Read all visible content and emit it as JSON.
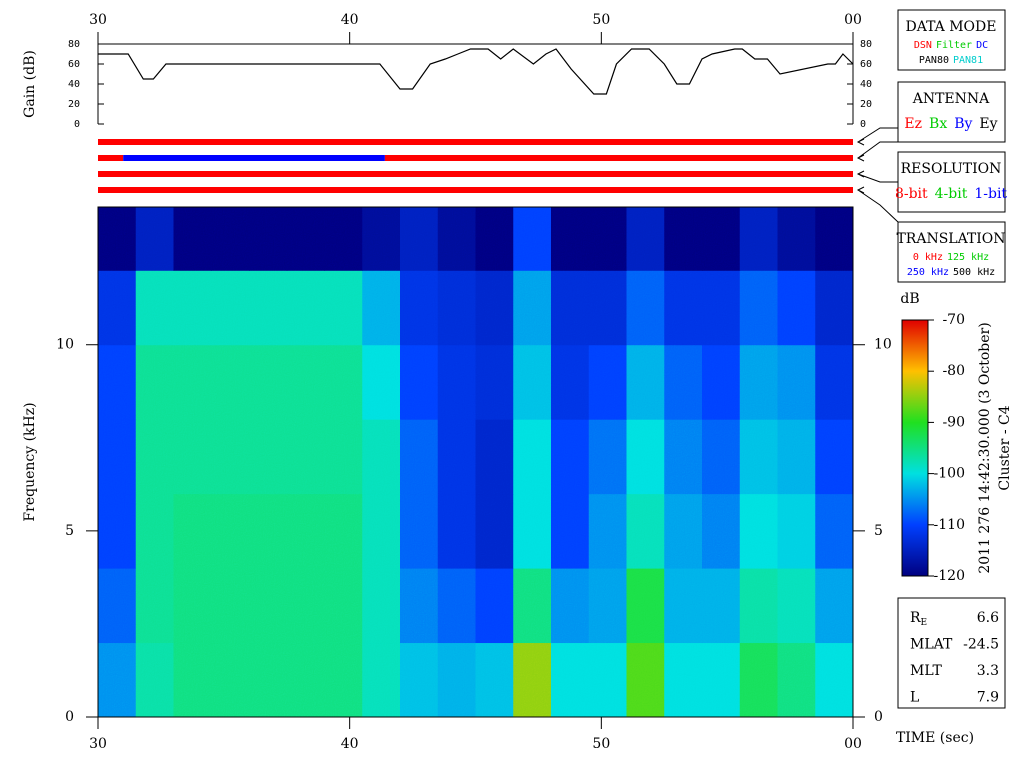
{
  "chart_data": [
    {
      "type": "line",
      "ylabel": "Gain (dB)",
      "color": "#000000",
      "x": [
        30,
        31.2,
        31.8,
        32.2,
        32.7,
        41.2,
        42.0,
        42.5,
        43.2,
        43.8,
        44.3,
        44.8,
        45.5,
        46.0,
        46.5,
        47.3,
        47.8,
        48.2,
        48.8,
        49.7,
        50.2,
        50.6,
        51.2,
        51.9,
        52.5,
        53.0,
        53.5,
        54.0,
        54.4,
        55.3,
        55.6,
        56.1,
        56.6,
        57.1,
        59.0,
        59.3,
        59.6,
        60
      ],
      "values": [
        70,
        70,
        45,
        45,
        60,
        60,
        35,
        35,
        60,
        65,
        70,
        75,
        75,
        65,
        75,
        60,
        70,
        75,
        55,
        30,
        30,
        60,
        75,
        75,
        60,
        40,
        40,
        65,
        70,
        75,
        75,
        65,
        65,
        50,
        60,
        60,
        70,
        60
      ],
      "xlim": [
        30,
        60
      ],
      "xticks": [
        30,
        40,
        50,
        {
          "value": 60,
          "label": "00"
        }
      ],
      "ylim": [
        0,
        80
      ],
      "yticks": [
        0,
        20,
        40,
        60,
        80
      ]
    },
    {
      "type": "status",
      "xlim": [
        30,
        60
      ],
      "rows": [
        [
          {
            "start": 30,
            "end": 60,
            "color": "#ff0000"
          }
        ],
        [
          {
            "start": 30,
            "end": 31,
            "color": "#ff0000"
          },
          {
            "start": 31,
            "end": 41.4,
            "color": "#0000ff"
          },
          {
            "start": 41.4,
            "end": 60,
            "color": "#ff0000"
          }
        ],
        [
          {
            "start": 30,
            "end": 60,
            "color": "#ff0000"
          }
        ],
        [
          {
            "start": 30,
            "end": 60,
            "color": "#ff0000"
          }
        ]
      ]
    },
    {
      "type": "heatmap",
      "xlabel": "TIME (sec)",
      "ylabel": "Frequency (kHz)",
      "colorbar_label": "dB",
      "x_edges": [
        30,
        31.5,
        33,
        34.5,
        36,
        37.5,
        39,
        40.5,
        42,
        43.5,
        45,
        46.5,
        48,
        49.5,
        51,
        52.5,
        54,
        55.5,
        57,
        58.5,
        60
      ],
      "y_edges": [
        0,
        2,
        4,
        6,
        8,
        10,
        12,
        13.7
      ],
      "z": [
        [
          -105,
          -97,
          -95,
          -95,
          -95,
          -95,
          -95,
          -98,
          -102,
          -103,
          -102,
          -85,
          -100,
          -100,
          -88,
          -100,
          -100,
          -93,
          -95,
          -100
        ],
        [
          -108,
          -96,
          -95,
          -95,
          -95,
          -95,
          -95,
          -98,
          -106,
          -108,
          -110,
          -95,
          -105,
          -104,
          -92,
          -103,
          -103,
          -97,
          -98,
          -104
        ],
        [
          -110,
          -96,
          -95,
          -95,
          -95,
          -95,
          -95,
          -98,
          -108,
          -112,
          -114,
          -100,
          -110,
          -105,
          -98,
          -104,
          -106,
          -100,
          -101,
          -108
        ],
        [
          -110,
          -96,
          -96,
          -96,
          -96,
          -96,
          -96,
          -98,
          -108,
          -112,
          -114,
          -100,
          -110,
          -107,
          -100,
          -106,
          -108,
          -102,
          -103,
          -110
        ],
        [
          -110,
          -96,
          -96,
          -96,
          -96,
          -96,
          -96,
          -100,
          -110,
          -112,
          -113,
          -102,
          -112,
          -110,
          -103,
          -108,
          -110,
          -104,
          -105,
          -112
        ],
        [
          -112,
          -98,
          -98,
          -98,
          -98,
          -98,
          -98,
          -103,
          -112,
          -113,
          -114,
          -104,
          -113,
          -113,
          -108,
          -112,
          -112,
          -108,
          -110,
          -114
        ],
        [
          -120,
          -115,
          -120,
          -120,
          -120,
          -120,
          -120,
          -118,
          -115,
          -118,
          -120,
          -110,
          -120,
          -120,
          -115,
          -120,
          -120,
          -115,
          -118,
          -120
        ]
      ],
      "zlim": [
        -120,
        -70
      ],
      "zticks": [
        -70,
        -80,
        -90,
        -100,
        -110,
        -120
      ],
      "colormap": [
        "#000080",
        "#0040ff",
        "#00e0e0",
        "#20e020",
        "#ffc000",
        "#e00000"
      ],
      "xlim": [
        30,
        60
      ],
      "xticks": [
        30,
        40,
        50,
        {
          "value": 60,
          "label": "00"
        }
      ],
      "ylim": [
        0,
        13.7
      ],
      "yticks": [
        0,
        5,
        10
      ]
    }
  ],
  "side_text": [
    "2011 276 14:42:30.000 (3 October)",
    "Cluster - C4"
  ],
  "panels": [
    {
      "title": "DATA MODE",
      "lines": [
        [
          {
            "name": "DSN",
            "color": "#ff0000"
          },
          {
            "name": "Filter",
            "color": "#00cc00"
          },
          {
            "name": "DC",
            "color": "#0000ff"
          }
        ],
        [
          {
            "name": "PAN80",
            "color": "#000000"
          },
          {
            "name": "PAN81",
            "color": "#00cccc"
          }
        ]
      ]
    },
    {
      "title": "ANTENNA",
      "lines": [
        [
          {
            "name": "Ez",
            "color": "#ff0000"
          },
          {
            "name": "Bx",
            "color": "#00cc00"
          },
          {
            "name": "By",
            "color": "#0000ff"
          },
          {
            "name": "Ey",
            "color": "#000000"
          }
        ]
      ]
    },
    {
      "title": "RESOLUTION",
      "lines": [
        [
          {
            "name": "8-bit",
            "color": "#ff0000"
          },
          {
            "name": "4-bit",
            "color": "#00cc00"
          },
          {
            "name": "1-bit",
            "color": "#0000ff"
          }
        ]
      ]
    },
    {
      "title": "TRANSLATION",
      "lines": [
        [
          {
            "name": "0 kHz",
            "color": "#ff0000"
          },
          {
            "name": "125 kHz",
            "color": "#00cc00"
          }
        ],
        [
          {
            "name": "250 kHz",
            "color": "#0000ff"
          },
          {
            "name": "500 kHz",
            "color": "#000000"
          }
        ]
      ]
    }
  ],
  "info": [
    {
      "label": "R",
      "sub": "E",
      "value": 6.6
    },
    {
      "label": "MLAT",
      "value": -24.5
    },
    {
      "label": "MLT",
      "value": 3.3
    },
    {
      "label": "L",
      "value": 7.9
    }
  ]
}
